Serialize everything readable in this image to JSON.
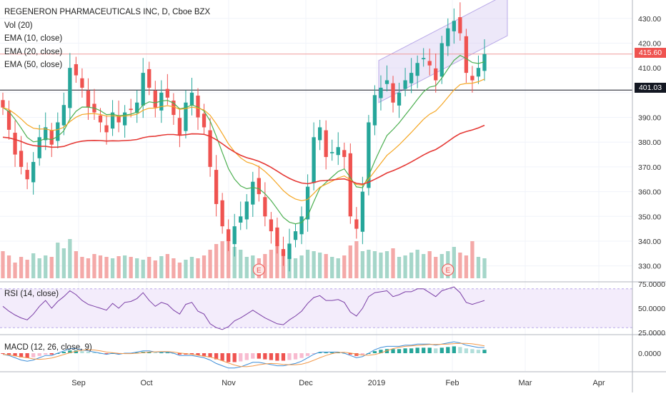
{
  "chart_data": {
    "type": "candlestick",
    "symbol_title": "REGENERON PHARMACEUTICALS INC, D, Cboe BZX",
    "indicators": [
      "Vol (20)",
      "EMA (10, close)",
      "EMA (20, close)",
      "EMA (50, close)"
    ],
    "rsi_title": "RSI (14, close)",
    "macd_title": "MACD (12, 26, close, 9)",
    "x_labels": [
      "Sep",
      "Oct",
      "Nov",
      "Dec",
      "2019",
      "Feb",
      "Mar",
      "Apr"
    ],
    "y_ticks_price": [
      "430.00",
      "420.00",
      "410.00",
      "390.00",
      "380.00",
      "370.00",
      "360.00",
      "350.00",
      "340.00",
      "330.00"
    ],
    "y_ticks_rsi": [
      "75.0000",
      "50.0000",
      "25.0000"
    ],
    "y_ticks_macd": [
      "0.0000"
    ],
    "ylim_price": [
      325,
      436
    ],
    "last_price": "415.60",
    "level_price": "401.03",
    "earnings_marker": "E",
    "colors": {
      "up": "#26a69a",
      "down": "#ef5350",
      "ema10": "#4caf50",
      "ema20": "#f5a623",
      "ema50": "#e53935",
      "rsi": "#7b3fa6",
      "macd": "#3d8ed8",
      "signal": "#f2994a",
      "channel": "#d7cdf2"
    },
    "closes": [
      394,
      385,
      375,
      370,
      365,
      372,
      382,
      386,
      379,
      388,
      395,
      410,
      407,
      402,
      394,
      392,
      388,
      384,
      392,
      388,
      392,
      393,
      396,
      408,
      402,
      394,
      400,
      398,
      391,
      383,
      396,
      400,
      390,
      386,
      370,
      355,
      346,
      340,
      346,
      350,
      356,
      364,
      359,
      350,
      344,
      338,
      334,
      339,
      344,
      350,
      362,
      382,
      386,
      374,
      376,
      378,
      374,
      350,
      345,
      360,
      388,
      399,
      402,
      405,
      396,
      400,
      405,
      408,
      412,
      414,
      411,
      405,
      420,
      426,
      429,
      424,
      408,
      405,
      410,
      415.6
    ],
    "volume": [
      38,
      32,
      22,
      30,
      26,
      35,
      28,
      32,
      30,
      50,
      42,
      55,
      38,
      30,
      28,
      34,
      32,
      30,
      28,
      31,
      32,
      30,
      28,
      26,
      30,
      25,
      31,
      34,
      28,
      22,
      26,
      30,
      28,
      32,
      40,
      48,
      52,
      56,
      44,
      40,
      30,
      32,
      28,
      34,
      40,
      46,
      38,
      30,
      28,
      32,
      40,
      38,
      36,
      34,
      30,
      28,
      32,
      46,
      52,
      38,
      40,
      38,
      36,
      38,
      42,
      30,
      32,
      36,
      40,
      34,
      38,
      30,
      34,
      38,
      44,
      36,
      32,
      52,
      30,
      28
    ],
    "rsi": [
      52,
      47,
      43,
      40,
      38,
      44,
      52,
      58,
      50,
      57,
      62,
      68,
      64,
      58,
      54,
      52,
      50,
      48,
      55,
      50,
      56,
      57,
      60,
      66,
      58,
      52,
      56,
      54,
      48,
      44,
      54,
      56,
      47,
      44,
      34,
      30,
      28,
      31,
      37,
      40,
      44,
      48,
      44,
      40,
      37,
      34,
      33,
      38,
      42,
      47,
      55,
      61,
      63,
      58,
      58,
      59,
      56,
      46,
      42,
      50,
      62,
      66,
      67,
      68,
      62,
      64,
      67,
      67,
      70,
      70,
      66,
      62,
      68,
      70,
      72,
      66,
      56,
      54,
      56,
      58
    ],
    "macd": [
      -1,
      -2,
      -4,
      -6,
      -7,
      -6,
      -4,
      -2,
      -2,
      0,
      2,
      4,
      4,
      3,
      2,
      1,
      0,
      -1,
      0,
      -1,
      0,
      0,
      1,
      2,
      2,
      1,
      1,
      1,
      0,
      -2,
      -2,
      -2,
      -3,
      -4,
      -6,
      -9,
      -11,
      -13,
      -13,
      -12,
      -10,
      -8,
      -8,
      -9,
      -10,
      -11,
      -11,
      -10,
      -9,
      -7,
      -4,
      -1,
      1,
      1,
      1,
      1,
      0,
      -2,
      -4,
      -3,
      0,
      3,
      5,
      6,
      6,
      6,
      7,
      7,
      8,
      8,
      8,
      7,
      8,
      9,
      10,
      9,
      7,
      6,
      5,
      5
    ]
  }
}
